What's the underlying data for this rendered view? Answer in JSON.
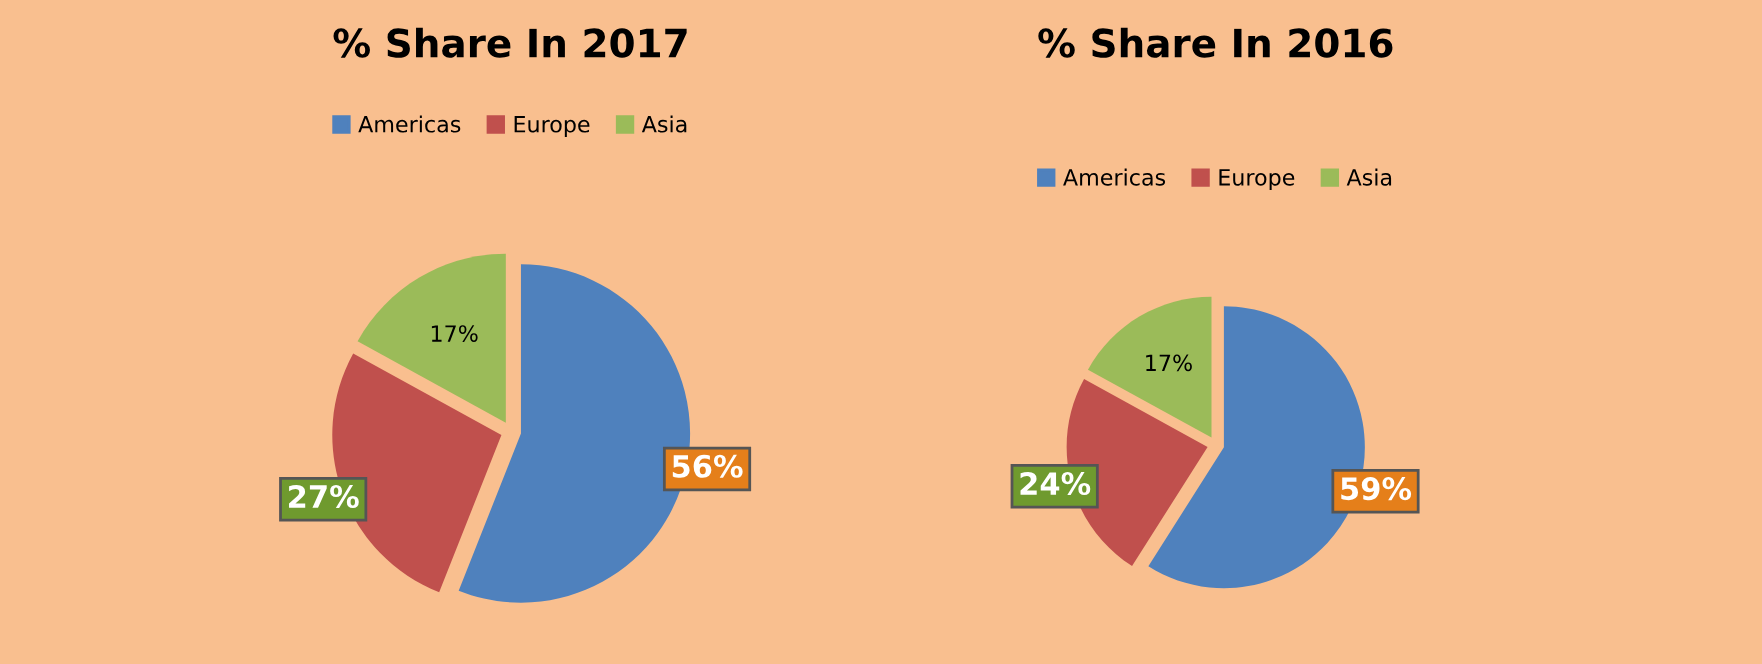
{
  "chart_data": [
    {
      "type": "pie",
      "title": "% Share In 2017",
      "categories": [
        "Americas",
        "Europe",
        "Asia"
      ],
      "values": [
        56,
        27,
        17
      ],
      "colors": [
        "#4f81bd",
        "#c0504d",
        "#9bbb59"
      ],
      "value_labels": [
        "56%",
        "27%",
        "17%"
      ],
      "legend": "top"
    },
    {
      "type": "pie",
      "title": "% Share In 2016",
      "categories": [
        "Americas",
        "Europe",
        "Asia"
      ],
      "values": [
        59,
        24,
        17
      ],
      "colors": [
        "#4f81bd",
        "#c0504d",
        "#9bbb59"
      ],
      "value_labels": [
        "59%",
        "24%",
        "17%"
      ],
      "legend": "top"
    }
  ]
}
